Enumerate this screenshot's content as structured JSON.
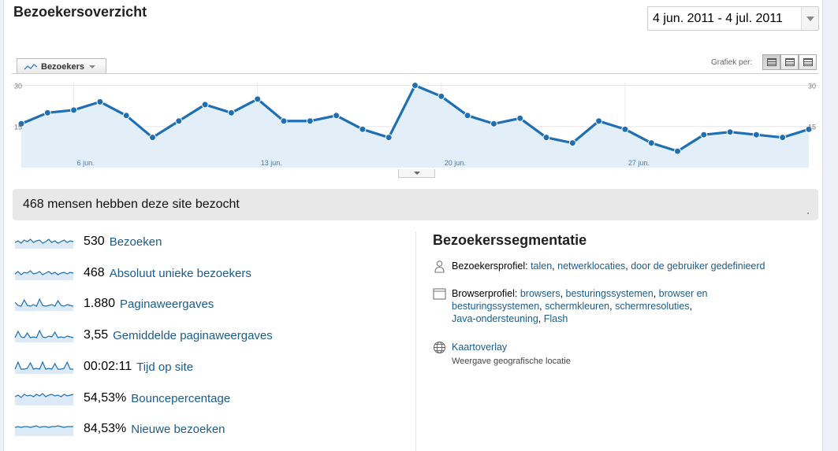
{
  "page": {
    "title": "Bezoekersoverzicht",
    "date_range": "4 jun. 2011 - 4 jul. 2011"
  },
  "graph": {
    "metric_tab": "Bezoekers",
    "graph_per_label": "Grafiek per:",
    "view_buttons": [
      "day-view-icon",
      "week-view-icon",
      "month-view-icon"
    ]
  },
  "chart_data": {
    "type": "area",
    "y_ticks_left": [
      "30",
      "15"
    ],
    "y_ticks_right": [
      "30",
      "15"
    ],
    "x_ticks": [
      "6 jun.",
      "13 jun.",
      "20 jun.",
      "27 jun."
    ],
    "ylim": [
      0,
      31
    ],
    "x_day_start": 4,
    "series": [
      {
        "values": [
          16,
          20,
          21,
          24,
          19,
          11,
          17,
          23,
          20,
          25,
          17,
          17,
          19,
          14,
          11,
          30,
          26,
          19,
          16,
          18,
          11,
          9,
          17,
          14,
          9,
          6,
          12,
          13,
          12,
          11,
          14
        ]
      }
    ],
    "color": "#1e6fb3",
    "fill": "#e2eff8",
    "grid": true
  },
  "summary": {
    "text": "468 mensen hebben deze site bezocht"
  },
  "metrics": [
    {
      "value": "530",
      "label": "Bezoeken",
      "spark": [
        6,
        8,
        5,
        9,
        7,
        10,
        6,
        8,
        9,
        5,
        7,
        10,
        6,
        8,
        5,
        7,
        9,
        6,
        8,
        7
      ]
    },
    {
      "value": "468",
      "label": "Absoluut unieke bezoekers",
      "spark": [
        6,
        9,
        5,
        8,
        7,
        10,
        6,
        7,
        9,
        5,
        7,
        9,
        6,
        8,
        5,
        7,
        8,
        6,
        8,
        7
      ]
    },
    {
      "value": "1.880",
      "label": "Paginaweergaves",
      "spark": [
        9,
        5,
        4,
        12,
        5,
        4,
        6,
        4,
        13,
        5,
        4,
        5,
        6,
        4,
        11,
        5,
        4,
        6,
        5,
        4
      ]
    },
    {
      "value": "3,55",
      "label": "Gemiddelde paginaweergaves",
      "spark": [
        4,
        12,
        5,
        4,
        10,
        4,
        5,
        4,
        13,
        5,
        4,
        6,
        5,
        11,
        4,
        5,
        4,
        6,
        5,
        4
      ]
    },
    {
      "value": "00:02:11",
      "label": "Tijd op site",
      "spark": [
        4,
        13,
        4,
        4,
        5,
        12,
        4,
        5,
        4,
        13,
        4,
        5,
        4,
        11,
        4,
        4,
        5,
        13,
        4,
        4
      ]
    },
    {
      "value": "54,53%",
      "label": "Bouncepercentage",
      "spark": [
        9,
        11,
        8,
        12,
        10,
        11,
        9,
        12,
        10,
        13,
        9,
        11,
        12,
        10,
        11,
        9,
        12,
        10,
        11,
        12
      ]
    },
    {
      "value": "84,53%",
      "label": "Nieuwe bezoeken",
      "spark": [
        9,
        10,
        9,
        10,
        10,
        9,
        10,
        11,
        9,
        10,
        10,
        9,
        10,
        10,
        11,
        10,
        9,
        10,
        10,
        10
      ]
    }
  ],
  "segmentation": {
    "title": "Bezoekerssegmentatie",
    "profile": {
      "label": "Bezoekersprofiel:",
      "links": [
        "talen",
        "netwerklocaties",
        "door de gebruiker gedefinieerd"
      ]
    },
    "browser": {
      "label": "Browserprofiel:",
      "links": [
        "browsers",
        "besturingssystemen",
        "browser en besturingssystemen",
        "schermkleuren",
        "schermresoluties",
        "Java-ondersteuning",
        "Flash"
      ]
    },
    "map": {
      "link": "Kaartoverlay",
      "sub": "Weergave geografische locatie"
    }
  }
}
